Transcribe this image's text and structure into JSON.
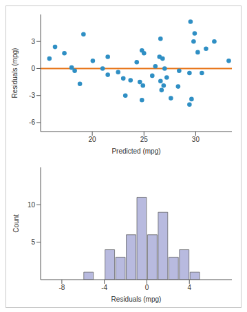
{
  "chart_data": [
    {
      "type": "scatter",
      "x_label": "Predicted (mpg)",
      "y_label": "Residuals (mpg)",
      "x": [
        15.85,
        16.4,
        17.3,
        18.0,
        18.3,
        18.8,
        19.15,
        20.05,
        21.0,
        21.5,
        21.5,
        22.5,
        23.0,
        23.2,
        23.7,
        24.3,
        24.6,
        24.8,
        25.0,
        24.8,
        24.9,
        25.8,
        26.1,
        26.6,
        26.5,
        26.8,
        26.6,
        26.7,
        26.9,
        27.0,
        27.2,
        27.6,
        28.4,
        28.3,
        29.4,
        29.6,
        29.4,
        29.5,
        29.8,
        29.9,
        30.2,
        30.6,
        31.0,
        31.8,
        33.2
      ],
      "values": [
        1.1,
        2.4,
        1.7,
        0.1,
        -0.25,
        -1.7,
        3.8,
        0.85,
        0.0,
        1.3,
        -0.7,
        -0.4,
        -1.1,
        -3.0,
        -1.3,
        0.7,
        -1.5,
        2.0,
        1.7,
        -3.5,
        -1.9,
        -0.8,
        0.25,
        3.3,
        1.3,
        1.1,
        -1.4,
        -2.4,
        -1.9,
        0.0,
        -1.0,
        -3.3,
        -0.25,
        -2.0,
        -4.0,
        -3.4,
        -0.5,
        5.2,
        3.0,
        3.9,
        1.8,
        -0.5,
        2.2,
        3.0,
        0.85
      ],
      "color": "#2f8fc4",
      "xlim": [
        15,
        33.5
      ],
      "ylim": [
        -7,
        6
      ],
      "xticks": [
        20,
        25,
        30
      ],
      "yticks": [
        -6,
        -3,
        0,
        3
      ],
      "reference_line": {
        "y": 0,
        "color": "#e8761a"
      },
      "grid": false
    },
    {
      "type": "histogram",
      "x_label": "Residuals (mpg)",
      "y_label": "Count",
      "bins": [
        -6,
        -5,
        -4,
        -3,
        -2,
        -1,
        0,
        1,
        2,
        3,
        4,
        5
      ],
      "values": [
        1,
        0,
        4,
        3,
        6,
        11,
        6,
        9,
        3,
        4,
        1
      ],
      "color": "#b8badf",
      "xlim": [
        -10,
        8
      ],
      "ylim": [
        0,
        15
      ],
      "xticks": [
        -8,
        -4,
        0,
        4
      ],
      "yticks": [
        5,
        10
      ],
      "grid": false
    }
  ]
}
